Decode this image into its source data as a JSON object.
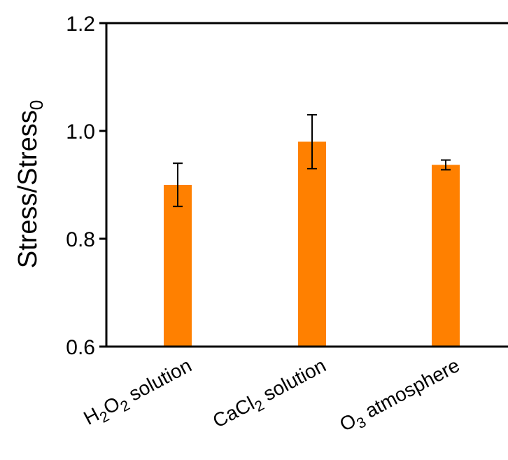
{
  "chart_data": {
    "type": "bar",
    "categories": [
      {
        "main": "H",
        "parts": [
          {
            "t": "H",
            "sub": false
          },
          {
            "t": "2",
            "sub": true
          },
          {
            "t": "O",
            "sub": false
          },
          {
            "t": "2",
            "sub": true
          },
          {
            "t": " solution",
            "sub": false
          }
        ]
      },
      {
        "main": "CaCl",
        "parts": [
          {
            "t": "CaCl",
            "sub": false
          },
          {
            "t": "2",
            "sub": true
          },
          {
            "t": " solution",
            "sub": false
          }
        ]
      },
      {
        "main": "O",
        "parts": [
          {
            "t": "O",
            "sub": false
          },
          {
            "t": "3",
            "sub": true
          },
          {
            "t": " atmosphere",
            "sub": false
          }
        ]
      }
    ],
    "category_labels": [
      "H2O2 solution",
      "CaCl2 solution",
      "O3 atmosphere"
    ],
    "values": [
      0.9,
      0.98,
      0.937
    ],
    "errors": [
      0.04,
      0.05,
      0.009
    ],
    "ylabel": {
      "main": "Stress/Stress",
      "sub": "0"
    },
    "ylim": [
      0.6,
      1.2
    ],
    "yticks": [
      "0.6",
      "0.8",
      "1.0",
      "1.2"
    ],
    "grid": false,
    "bar_color": "#ff8000",
    "axis_color": "#000000"
  }
}
